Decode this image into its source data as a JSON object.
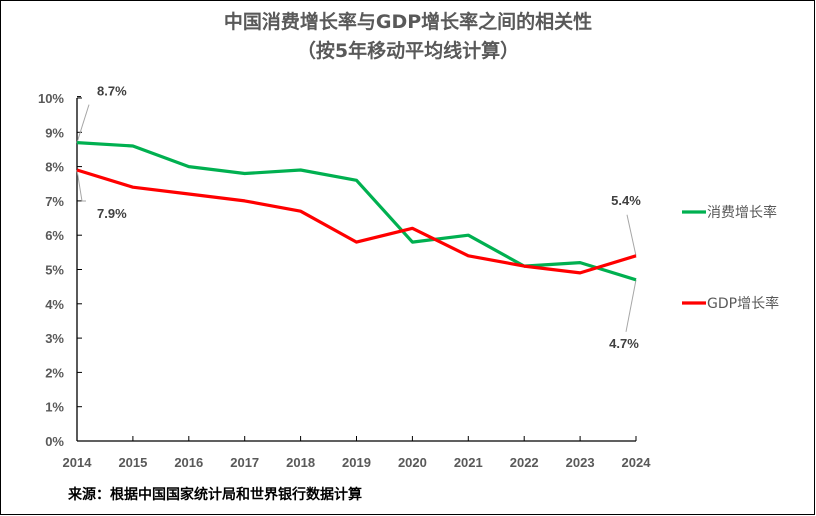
{
  "chart_data": {
    "type": "line",
    "title": "中国消费增长率与GDP增长率之间的相关性",
    "subtitle": "（按5年移动平均线计算）",
    "xlabel": "",
    "ylabel": "",
    "x": [
      "2014",
      "2015",
      "2016",
      "2017",
      "2018",
      "2019",
      "2020",
      "2021",
      "2022",
      "2023",
      "2024"
    ],
    "ylim": [
      0,
      10
    ],
    "y_ticks": [
      "0%",
      "1%",
      "2%",
      "3%",
      "4%",
      "5%",
      "6%",
      "7%",
      "8%",
      "9%",
      "10%"
    ],
    "y_tick_values": [
      0,
      1,
      2,
      3,
      4,
      5,
      6,
      7,
      8,
      9,
      10
    ],
    "grid": false,
    "legend_position": "right",
    "series": [
      {
        "name": "消费增长率",
        "color": "#00B050",
        "values": [
          8.7,
          8.6,
          8.0,
          7.8,
          7.9,
          7.6,
          5.8,
          6.0,
          5.1,
          5.2,
          4.7
        ]
      },
      {
        "name": "GDP增长率",
        "color": "#FF0000",
        "values": [
          7.9,
          7.4,
          7.2,
          7.0,
          6.7,
          5.8,
          6.2,
          5.4,
          5.1,
          4.9,
          5.4
        ]
      }
    ],
    "annotations": [
      {
        "series": 0,
        "x": "2014",
        "text": "8.7%"
      },
      {
        "series": 1,
        "x": "2014",
        "text": "7.9%"
      },
      {
        "series": 1,
        "x": "2024",
        "text": "5.4%"
      },
      {
        "series": 0,
        "x": "2024",
        "text": "4.7%"
      }
    ]
  },
  "source_note": "来源：根据中国国家统计局和世界银行数据计算"
}
